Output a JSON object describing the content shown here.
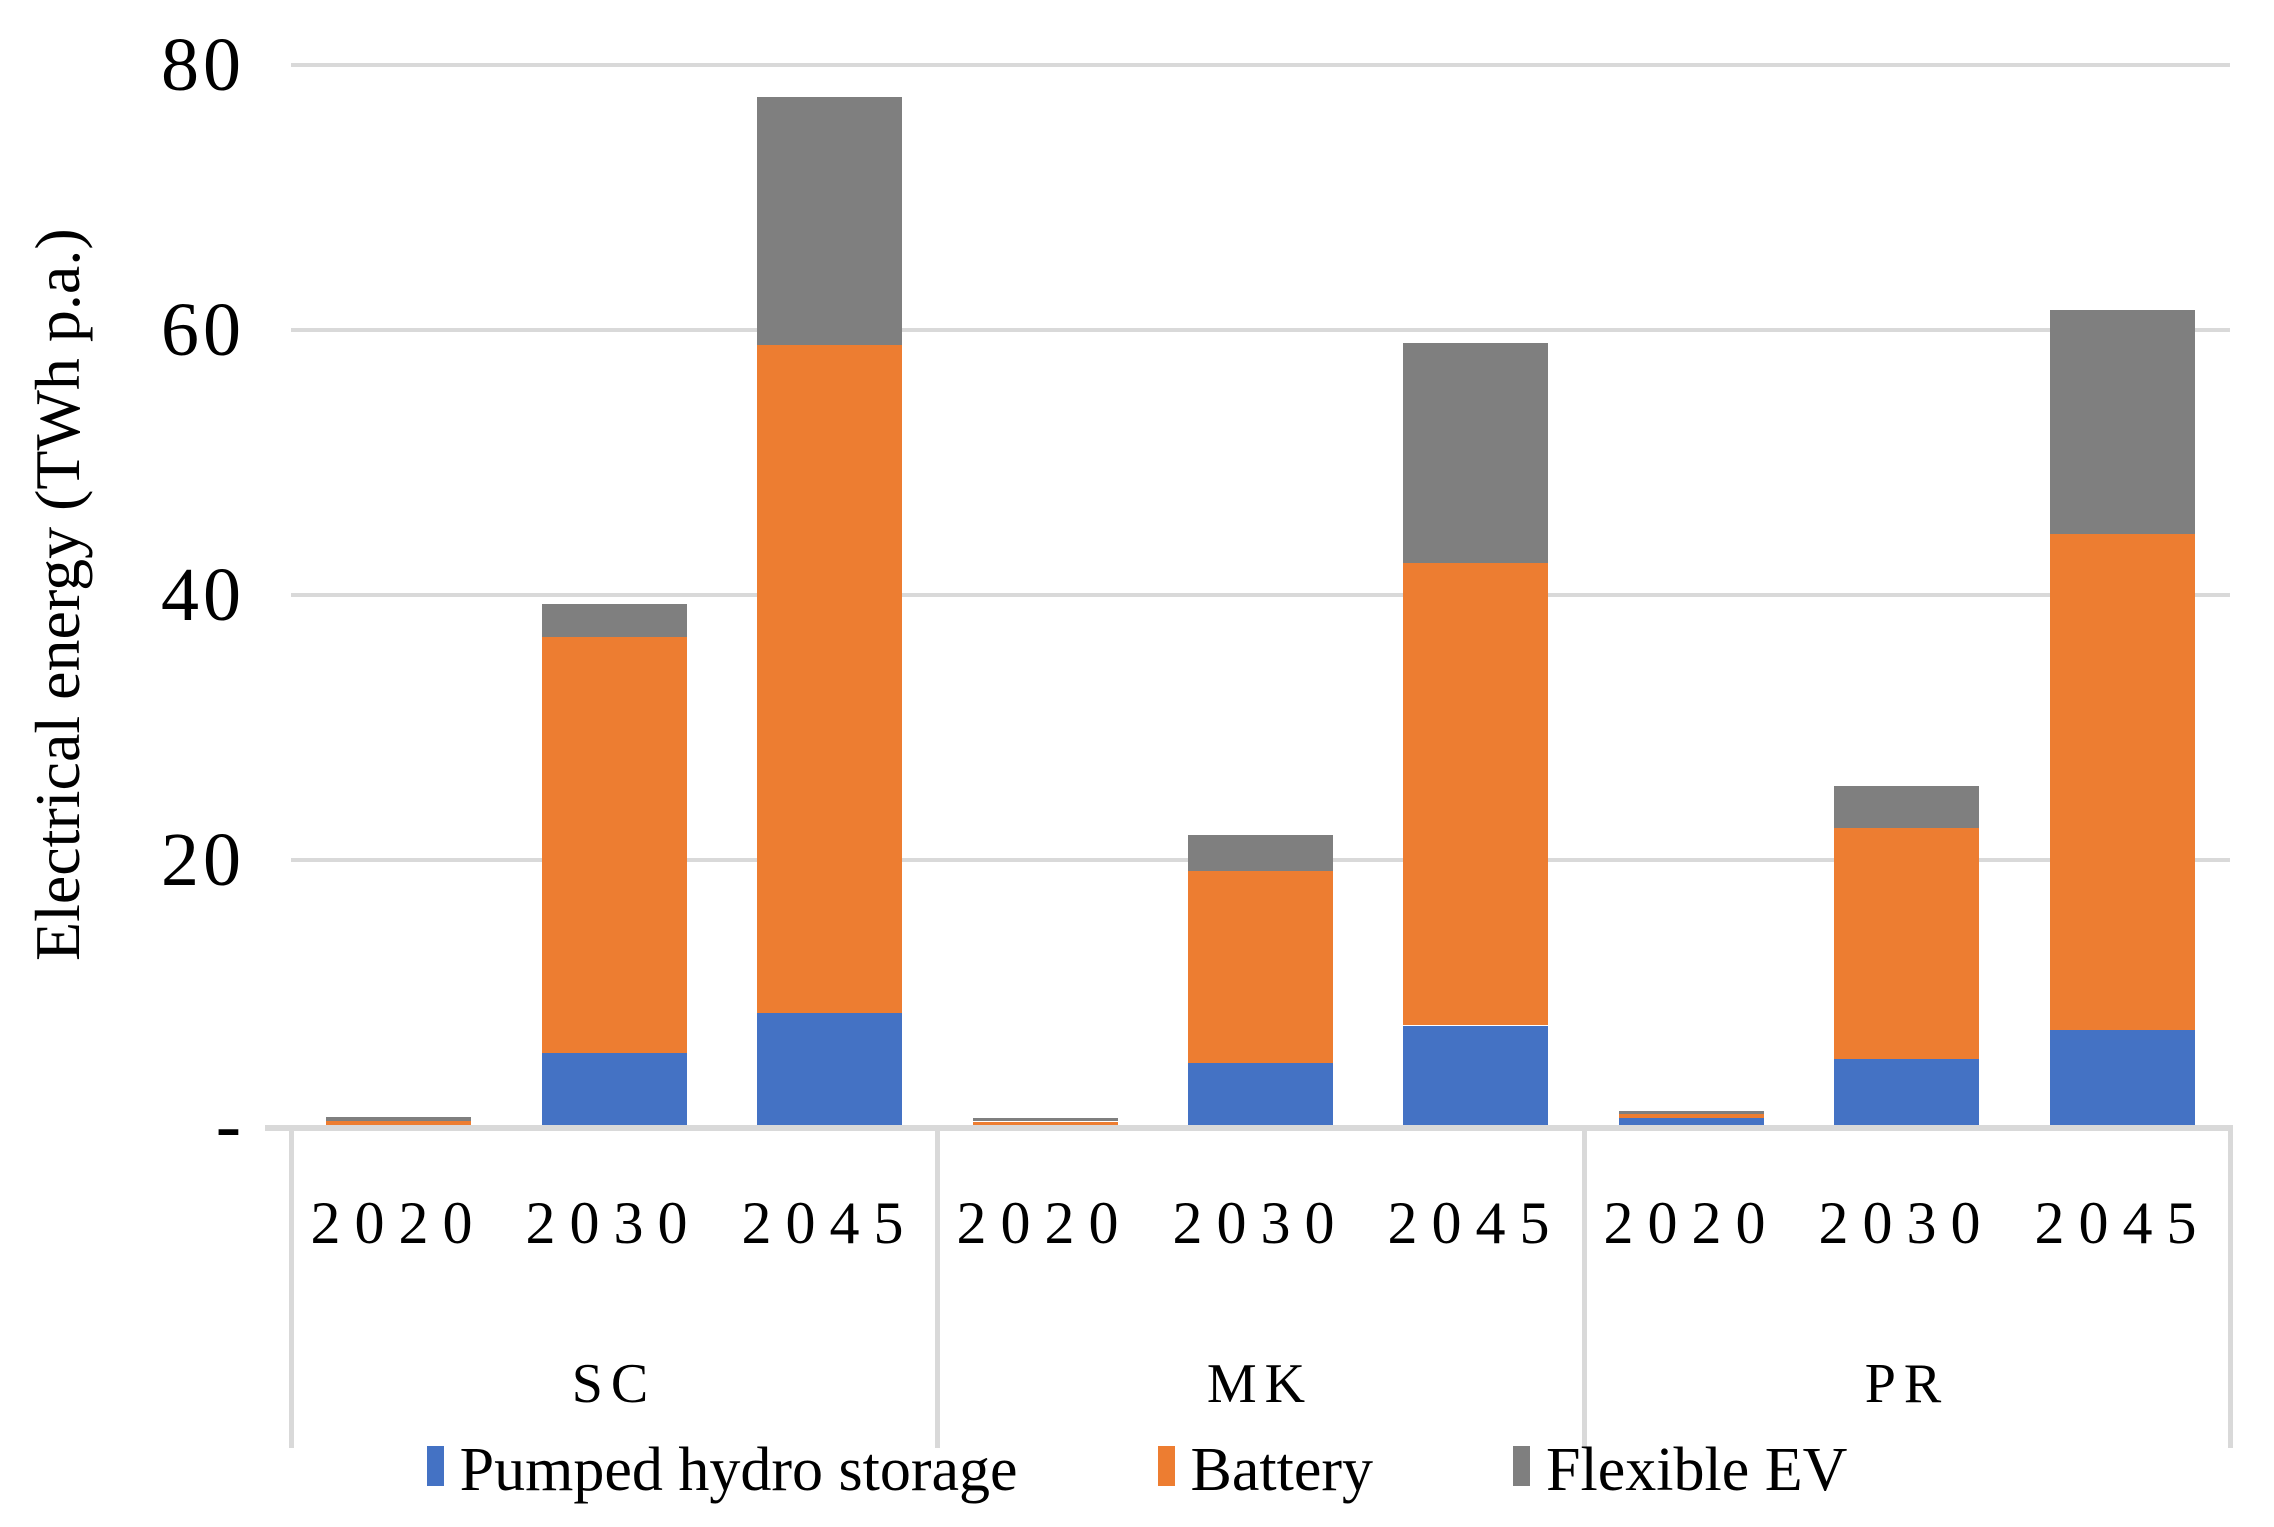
{
  "chart_data": {
    "type": "bar",
    "stacked": true,
    "title": "",
    "ylabel": "Electrical energy (TWh p.a.)",
    "xlabel": "",
    "ylim": [
      0,
      84.9
    ],
    "grid": "horizontal",
    "legend_position": "bottom",
    "y_ticks": [
      {
        "value": 80,
        "label": "80"
      },
      {
        "value": 60,
        "label": "60"
      },
      {
        "value": 40,
        "label": "40"
      },
      {
        "value": 20,
        "label": "20"
      },
      {
        "value": 0,
        "label": "-"
      }
    ],
    "series": [
      {
        "name": "Pumped hydro storage",
        "color": "#4472C4"
      },
      {
        "name": "Battery",
        "color": "#ED7D31"
      },
      {
        "name": "Flexible EV",
        "color": "#7F7F7F"
      }
    ],
    "groups": [
      {
        "label": "SC",
        "bars": [
          {
            "year": "2020",
            "values": [
              0,
              0.33,
              0.3
            ]
          },
          {
            "year": "2030",
            "values": [
              5.4,
              31.4,
              2.5
            ]
          },
          {
            "year": "2045",
            "values": [
              8.5,
              50.4,
              18.7
            ]
          }
        ]
      },
      {
        "label": "MK",
        "bars": [
          {
            "year": "2020",
            "values": [
              0,
              0.25,
              0.25
            ]
          },
          {
            "year": "2030",
            "values": [
              4.7,
              14.5,
              2.7
            ]
          },
          {
            "year": "2045",
            "values": [
              7.5,
              34.9,
              16.6
            ]
          }
        ]
      },
      {
        "label": "PR",
        "bars": [
          {
            "year": "2020",
            "values": [
              0.5,
              0.3,
              0.26
            ]
          },
          {
            "year": "2030",
            "values": [
              5.0,
              17.4,
              3.2
            ]
          },
          {
            "year": "2045",
            "values": [
              7.2,
              37.4,
              16.9
            ]
          }
        ]
      }
    ]
  },
  "colors": {
    "gridline": "#D9D9D9",
    "axis_line": "#D9D9D9",
    "text": "#000000",
    "background": "#FFFFFF"
  }
}
